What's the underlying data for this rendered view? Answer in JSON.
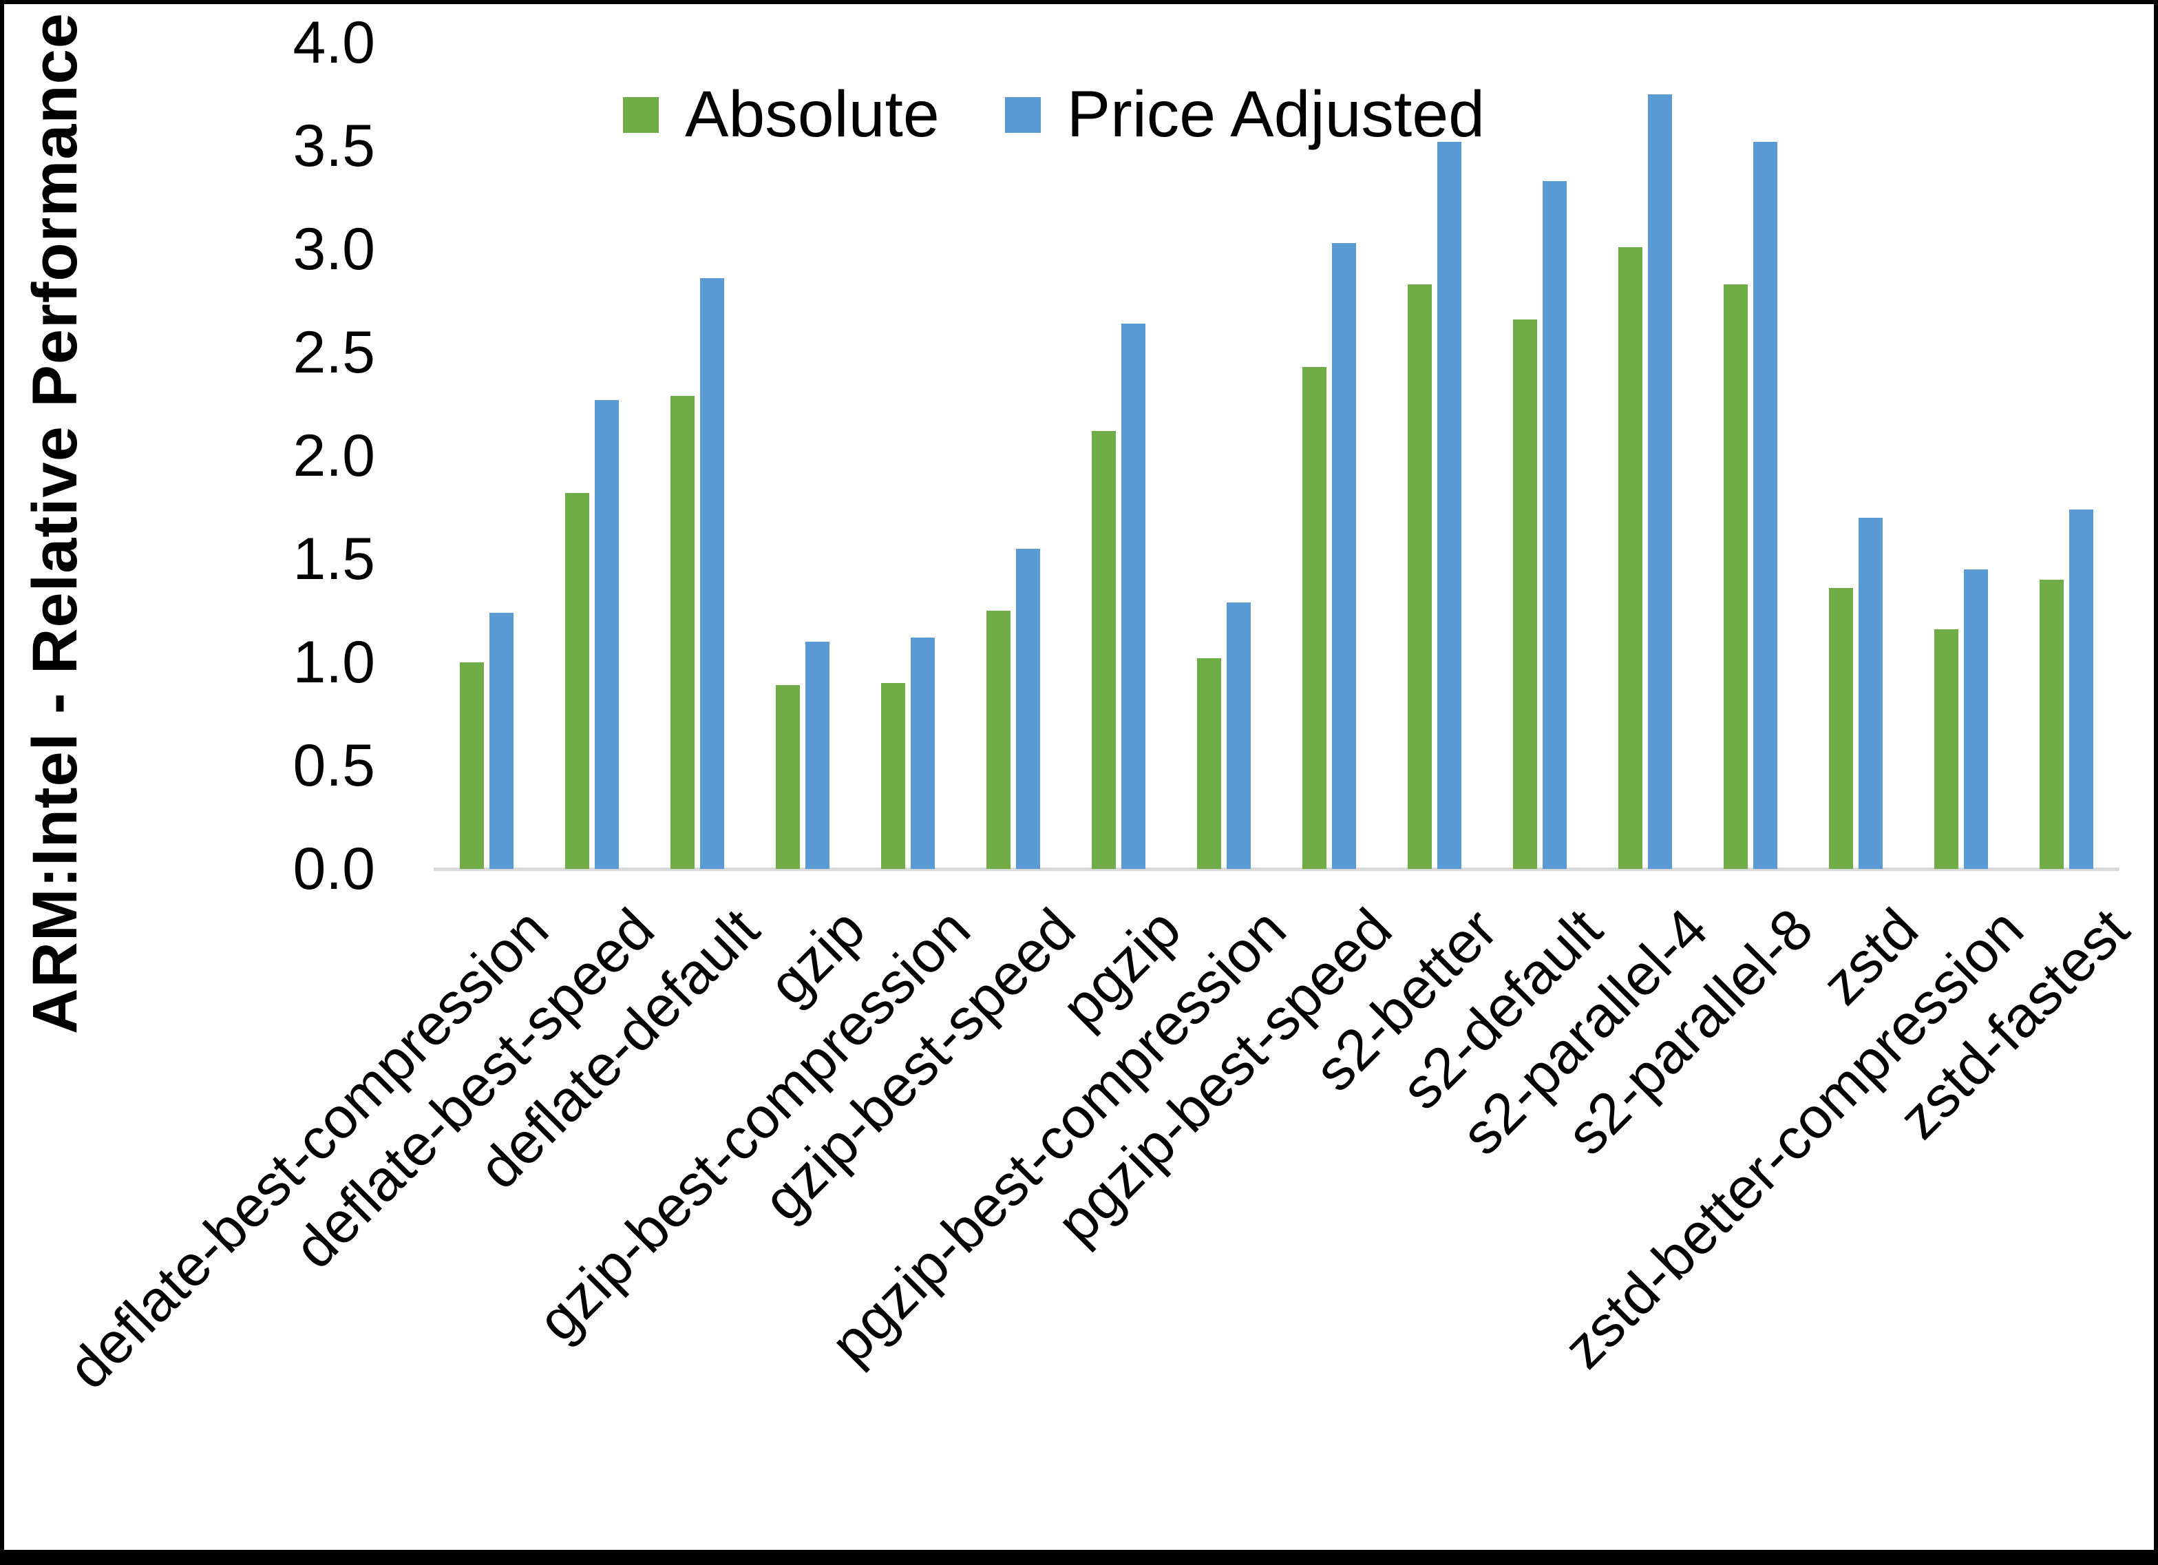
{
  "chart_data": {
    "type": "bar",
    "title": "",
    "ylabel": "ARM:Intel - Relative Performance",
    "xlabel": "",
    "ylim": [
      0.0,
      4.0
    ],
    "ytick_step": 0.5,
    "yticks": [
      "0.0",
      "0.5",
      "1.0",
      "1.5",
      "2.0",
      "2.5",
      "3.0",
      "3.5",
      "4.0"
    ],
    "grid": "off",
    "legend_position": "top-center",
    "axis_line_color": "#D9D9D9",
    "categories": [
      "deflate-best-compression",
      "deflate-best-speed",
      "deflate-default",
      "gzip",
      "gzip-best-compression",
      "gzip-best-speed",
      "pgzip",
      "pgzip-best-compression",
      "pgzip-best-speed",
      "s2-better",
      "s2-default",
      "s2-parallel-4",
      "s2-parallel-8",
      "zstd",
      "zstd-better-compression",
      "zstd-fastest"
    ],
    "series": [
      {
        "name": "Absolute",
        "color": "#70AD47",
        "values": [
          1.0,
          1.82,
          2.29,
          0.89,
          0.9,
          1.25,
          2.12,
          1.02,
          2.43,
          2.83,
          2.66,
          3.01,
          2.83,
          1.36,
          1.16,
          1.4
        ]
      },
      {
        "name": "Price Adjusted",
        "color": "#5B9BD5",
        "values": [
          1.24,
          2.27,
          2.86,
          1.1,
          1.12,
          1.55,
          2.64,
          1.29,
          3.03,
          3.52,
          3.33,
          3.75,
          3.52,
          1.7,
          1.45,
          1.74
        ]
      }
    ]
  }
}
